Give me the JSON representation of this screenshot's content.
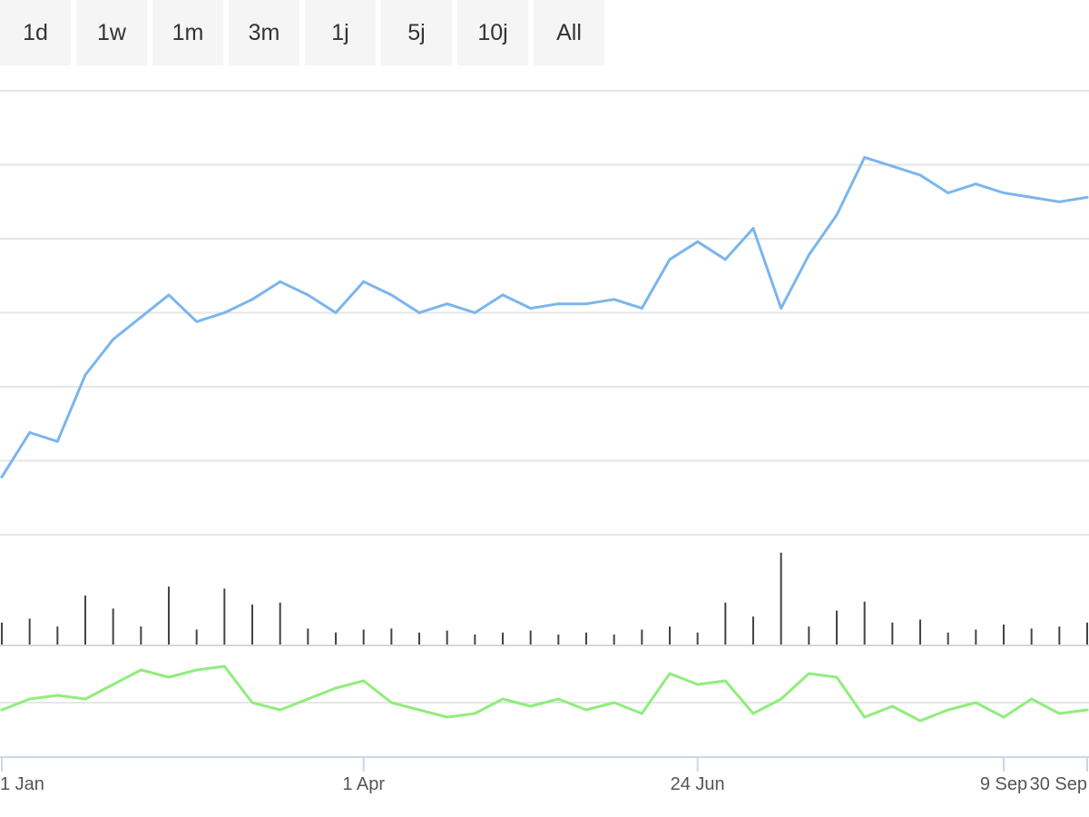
{
  "range_selector": {
    "buttons": [
      {
        "label": "1d"
      },
      {
        "label": "1w"
      },
      {
        "label": "1m"
      },
      {
        "label": "3m"
      },
      {
        "label": "1j"
      },
      {
        "label": "5j"
      },
      {
        "label": "10j"
      },
      {
        "label": "All"
      }
    ],
    "selected": ""
  },
  "chart_data": [
    {
      "type": "line",
      "panel": "price",
      "title": "",
      "xlabel": "",
      "ylabel": "",
      "grid": true,
      "color": "#7cb5ec",
      "x": [
        "Jan 1",
        "Jan 8",
        "Jan 15",
        "Jan 22",
        "Jan 29",
        "Feb 5",
        "Feb 12",
        "Feb 19",
        "Feb 26",
        "Mar 5",
        "Mar 12",
        "Mar 19",
        "Mar 26",
        "Apr 2",
        "Apr 9",
        "Apr 16",
        "Apr 23",
        "Apr 30",
        "May 7",
        "May 14",
        "May 21",
        "May 28",
        "Jun 4",
        "Jun 11",
        "Jun 18",
        "Jun 25",
        "Jul 2",
        "Jul 9",
        "Jul 16",
        "Jul 23",
        "Jul 30",
        "Aug 6",
        "Aug 13",
        "Aug 20",
        "Aug 27",
        "Sep 3",
        "Sep 10",
        "Sep 17",
        "Sep 24",
        "Oct 1"
      ],
      "values": [
        1.3,
        2.3,
        2.1,
        3.6,
        4.4,
        4.9,
        5.4,
        4.8,
        5.0,
        5.3,
        5.7,
        5.4,
        5.0,
        5.7,
        5.4,
        5.0,
        5.2,
        5.0,
        5.4,
        5.1,
        5.2,
        5.2,
        5.3,
        5.1,
        6.2,
        6.6,
        6.2,
        6.9,
        5.1,
        6.3,
        7.2,
        8.5,
        8.3,
        8.1,
        7.7,
        7.9,
        7.7,
        7.6,
        7.5,
        7.6
      ],
      "ylim": [
        0,
        10
      ]
    },
    {
      "type": "bar",
      "panel": "volume",
      "color": "#434348",
      "x": [
        "Jan 1",
        "Jan 8",
        "Jan 15",
        "Jan 22",
        "Jan 29",
        "Feb 5",
        "Feb 12",
        "Feb 19",
        "Feb 26",
        "Mar 5",
        "Mar 12",
        "Mar 19",
        "Mar 26",
        "Apr 2",
        "Apr 9",
        "Apr 16",
        "Apr 23",
        "Apr 30",
        "May 7",
        "May 14",
        "May 21",
        "May 28",
        "Jun 4",
        "Jun 11",
        "Jun 18",
        "Jun 25",
        "Jul 2",
        "Jul 9",
        "Jul 16",
        "Jul 23",
        "Jul 30",
        "Aug 6",
        "Aug 13",
        "Aug 20",
        "Aug 27",
        "Sep 3",
        "Sep 10",
        "Sep 17",
        "Sep 24",
        "Oct 1"
      ],
      "values": [
        22,
        26,
        18,
        49,
        36,
        18,
        58,
        15,
        56,
        40,
        42,
        16,
        12,
        15,
        16,
        12,
        14,
        10,
        12,
        14,
        10,
        12,
        10,
        15,
        18,
        12,
        42,
        28,
        92,
        18,
        34,
        43,
        22,
        25,
        12,
        15,
        20,
        16,
        18,
        22
      ],
      "ylim": [
        0,
        100
      ]
    },
    {
      "type": "line",
      "panel": "indicator",
      "color": "#90ed7d",
      "x": [
        "Jan 1",
        "Jan 8",
        "Jan 15",
        "Jan 22",
        "Jan 29",
        "Feb 5",
        "Feb 12",
        "Feb 19",
        "Feb 26",
        "Mar 5",
        "Mar 12",
        "Mar 19",
        "Mar 26",
        "Apr 2",
        "Apr 9",
        "Apr 16",
        "Apr 23",
        "Apr 30",
        "May 7",
        "May 14",
        "May 21",
        "May 28",
        "Jun 4",
        "Jun 11",
        "Jun 18",
        "Jun 25",
        "Jul 2",
        "Jul 9",
        "Jul 16",
        "Jul 23",
        "Jul 30",
        "Aug 6",
        "Aug 13",
        "Aug 20",
        "Aug 27",
        "Sep 3",
        "Sep 10",
        "Sep 17",
        "Sep 24",
        "Oct 1"
      ],
      "values": [
        0.3,
        0.6,
        0.7,
        0.6,
        1.0,
        1.4,
        1.2,
        1.4,
        1.5,
        0.5,
        0.3,
        0.6,
        0.9,
        1.1,
        0.5,
        0.3,
        0.1,
        0.2,
        0.6,
        0.4,
        0.6,
        0.3,
        0.5,
        0.2,
        1.3,
        1.0,
        1.1,
        0.2,
        0.6,
        1.3,
        1.2,
        0.1,
        0.4,
        0.0,
        0.3,
        0.5,
        0.1,
        0.6,
        0.2,
        0.3
      ],
      "ylim": [
        -1,
        2
      ]
    }
  ],
  "x_axis": {
    "tick_labels": [
      "1 Jan",
      "1 Apr",
      "24 Jun",
      "9 Sep",
      "30 Sep"
    ],
    "tick_index": [
      0,
      13,
      25,
      36,
      39
    ]
  }
}
